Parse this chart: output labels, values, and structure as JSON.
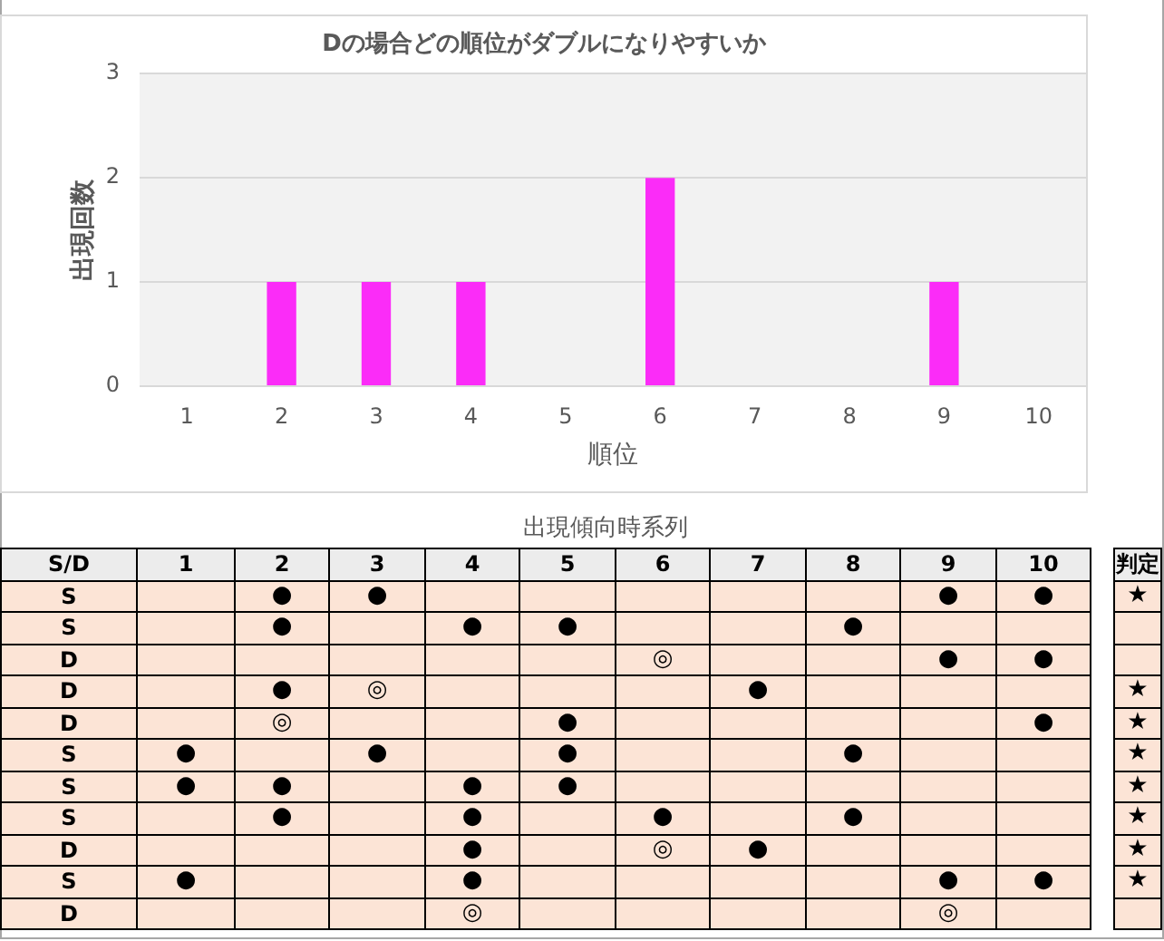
{
  "chart_data": [
    {
      "type": "bar",
      "title": "Dの場合どの順位がダブルになりやすいか",
      "xlabel": "順位",
      "ylabel": "出現回数",
      "categories": [
        "1",
        "2",
        "3",
        "4",
        "5",
        "6",
        "7",
        "8",
        "9",
        "10"
      ],
      "values": [
        0,
        1,
        1,
        1,
        0,
        2,
        0,
        0,
        1,
        0
      ],
      "color": "#fb2cf8",
      "ylim": [
        0,
        3
      ],
      "yticks": [
        0,
        1,
        2,
        3
      ],
      "grid": "y"
    },
    {
      "type": "heatmap",
      "title": "出現傾向時系列",
      "ylabel": "S/D",
      "y2label": "判定",
      "categories": [
        "1",
        "2",
        "3",
        "4",
        "5",
        "6",
        "7",
        "8",
        "9",
        "10"
      ],
      "y_categories": [
        "S",
        "S",
        "D",
        "D",
        "D",
        "S",
        "S",
        "S",
        "D",
        "S",
        "D"
      ],
      "y2_categories": [
        "★",
        null,
        null,
        "★",
        "★",
        "★",
        "★",
        "★",
        "★",
        "★",
        null
      ],
      "color": "#fce4d6",
      "cells": [
        [
          null,
          "●",
          "●",
          null,
          null,
          null,
          null,
          null,
          "●",
          "●"
        ],
        [
          null,
          "●",
          null,
          "●",
          "●",
          null,
          null,
          "●",
          null,
          null
        ],
        [
          null,
          null,
          null,
          null,
          null,
          "◎",
          null,
          null,
          "●",
          "●"
        ],
        [
          null,
          "●",
          "◎",
          null,
          null,
          null,
          "●",
          null,
          null,
          null
        ],
        [
          null,
          "◎",
          null,
          null,
          "●",
          null,
          null,
          null,
          null,
          "●"
        ],
        [
          "●",
          null,
          "●",
          null,
          "●",
          null,
          null,
          "●",
          null,
          null
        ],
        [
          "●",
          "●",
          null,
          "●",
          "●",
          null,
          null,
          null,
          null,
          null
        ],
        [
          null,
          "●",
          null,
          "●",
          null,
          "●",
          null,
          "●",
          null,
          null
        ],
        [
          null,
          null,
          null,
          "●",
          null,
          "◎",
          "●",
          null,
          null,
          null
        ],
        [
          "●",
          null,
          null,
          "●",
          null,
          null,
          null,
          null,
          "●",
          "●"
        ],
        [
          null,
          null,
          null,
          "◎",
          null,
          null,
          null,
          null,
          "◎",
          null
        ]
      ]
    }
  ]
}
